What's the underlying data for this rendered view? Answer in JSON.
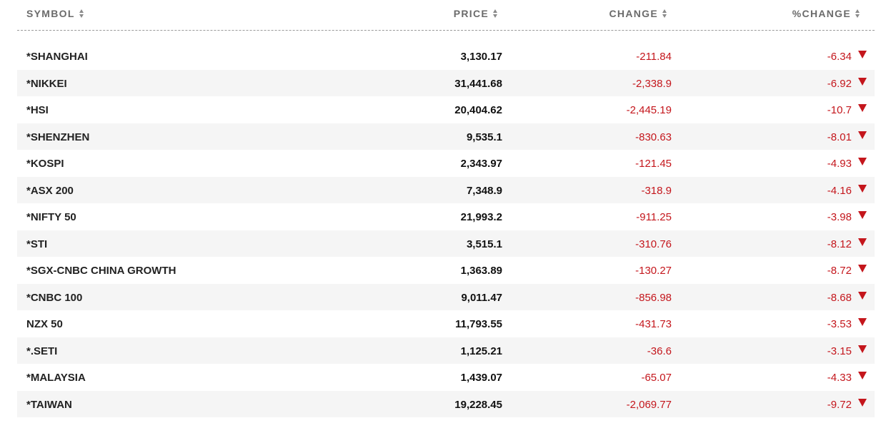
{
  "colors": {
    "negative": "#c4161c",
    "header_text": "#6b6b6b",
    "stripe": "#f5f5f5"
  },
  "header": {
    "symbol": "SYMBOL",
    "price": "PRICE",
    "change": "CHANGE",
    "pct_change": "%CHANGE"
  },
  "rows": [
    {
      "symbol": "*SHANGHAI",
      "price": "3,130.17",
      "change": "-211.84",
      "pct": "-6.34"
    },
    {
      "symbol": "*NIKKEI",
      "price": "31,441.68",
      "change": "-2,338.9",
      "pct": "-6.92"
    },
    {
      "symbol": "*HSI",
      "price": "20,404.62",
      "change": "-2,445.19",
      "pct": "-10.7"
    },
    {
      "symbol": "*SHENZHEN",
      "price": "9,535.1",
      "change": "-830.63",
      "pct": "-8.01"
    },
    {
      "symbol": "*KOSPI",
      "price": "2,343.97",
      "change": "-121.45",
      "pct": "-4.93"
    },
    {
      "symbol": "*ASX 200",
      "price": "7,348.9",
      "change": "-318.9",
      "pct": "-4.16"
    },
    {
      "symbol": "*NIFTY 50",
      "price": "21,993.2",
      "change": "-911.25",
      "pct": "-3.98"
    },
    {
      "symbol": "*STI",
      "price": "3,515.1",
      "change": "-310.76",
      "pct": "-8.12"
    },
    {
      "symbol": "*SGX-CNBC CHINA GROWTH",
      "price": "1,363.89",
      "change": "-130.27",
      "pct": "-8.72"
    },
    {
      "symbol": "*CNBC 100",
      "price": "9,011.47",
      "change": "-856.98",
      "pct": "-8.68"
    },
    {
      "symbol": "NZX 50",
      "price": "11,793.55",
      "change": "-431.73",
      "pct": "-3.53"
    },
    {
      "symbol": "*.SETI",
      "price": "1,125.21",
      "change": "-36.6",
      "pct": "-3.15"
    },
    {
      "symbol": "*MALAYSIA",
      "price": "1,439.07",
      "change": "-65.07",
      "pct": "-4.33"
    },
    {
      "symbol": "*TAIWAN",
      "price": "19,228.45",
      "change": "-2,069.77",
      "pct": "-9.72"
    }
  ]
}
